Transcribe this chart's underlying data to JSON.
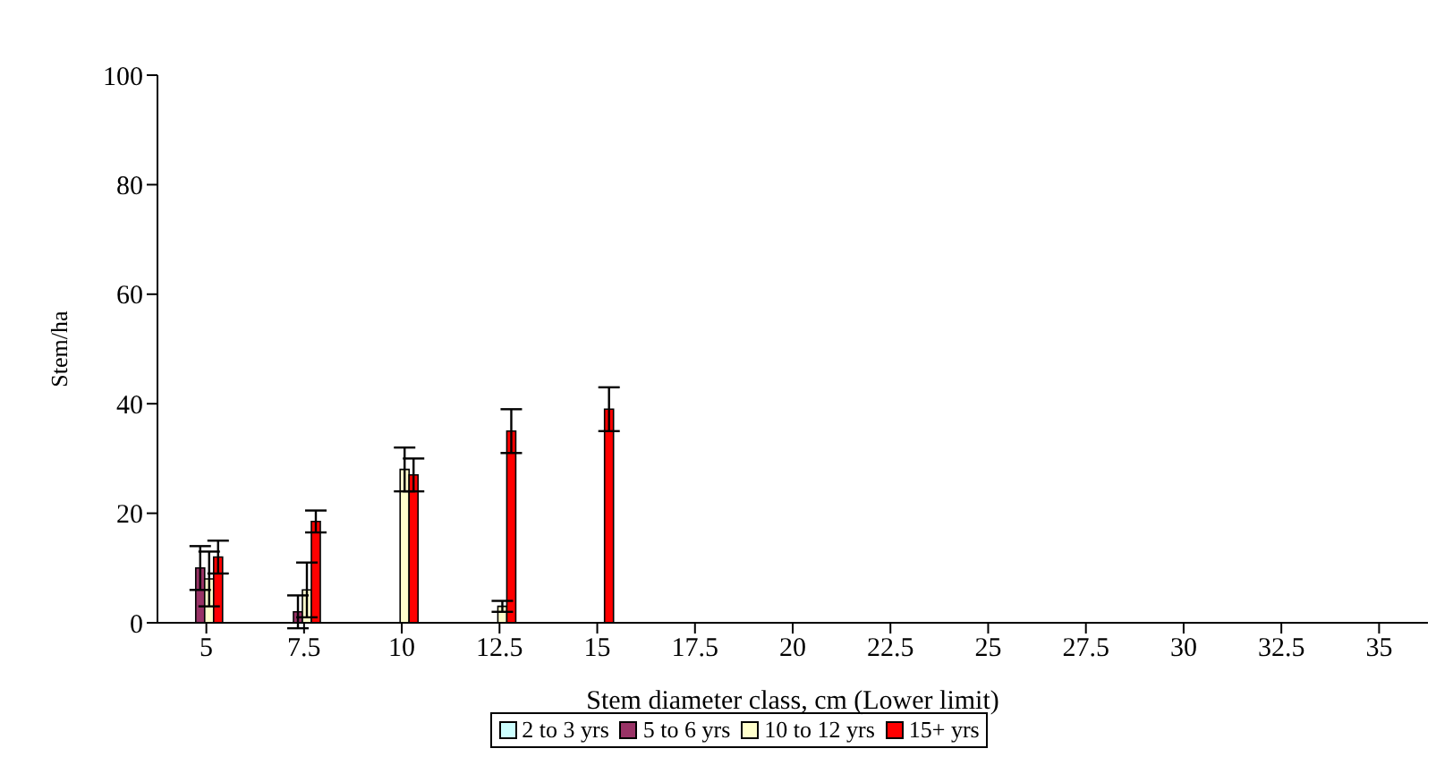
{
  "chart_data": {
    "type": "bar",
    "xlabel": "Stem diameter class, cm (Lower limit)",
    "ylabel": "Stem/ha",
    "categories": [
      "5",
      "7.5",
      "10",
      "12.5",
      "15",
      "17.5",
      "20",
      "22.5",
      "25",
      "27.5",
      "30",
      "32.5",
      "35"
    ],
    "series": [
      {
        "name": "2 to 3 yrs",
        "color": "#ccffff",
        "values": [
          null,
          null,
          null,
          null,
          null,
          null,
          null,
          null,
          null,
          null,
          null,
          null,
          null
        ]
      },
      {
        "name": "5 to 6 yrs",
        "color": "#993366",
        "values": [
          10,
          2,
          null,
          null,
          null,
          null,
          null,
          null,
          null,
          null,
          null,
          null,
          null
        ],
        "errors": [
          4,
          3,
          null,
          null,
          null,
          null,
          null,
          null,
          null,
          null,
          null,
          null,
          null
        ]
      },
      {
        "name": "10 to 12 yrs",
        "color": "#ffffcc",
        "values": [
          8,
          6,
          28,
          3,
          null,
          null,
          null,
          null,
          null,
          null,
          null,
          null,
          null
        ],
        "errors": [
          5,
          5,
          4,
          1,
          null,
          null,
          null,
          null,
          null,
          null,
          null,
          null,
          null
        ]
      },
      {
        "name": "15+ yrs",
        "color": "#ff0000",
        "values": [
          12,
          18.5,
          27,
          35,
          39,
          null,
          null,
          null,
          null,
          null,
          null,
          null,
          null
        ],
        "errors": [
          3,
          2,
          3,
          4,
          4,
          null,
          null,
          null,
          null,
          null,
          null,
          null,
          null
        ]
      }
    ],
    "ylim": [
      0,
      100
    ],
    "yticks": [
      0,
      20,
      40,
      60,
      80,
      100
    ],
    "grid": false,
    "legend": "bottom"
  }
}
